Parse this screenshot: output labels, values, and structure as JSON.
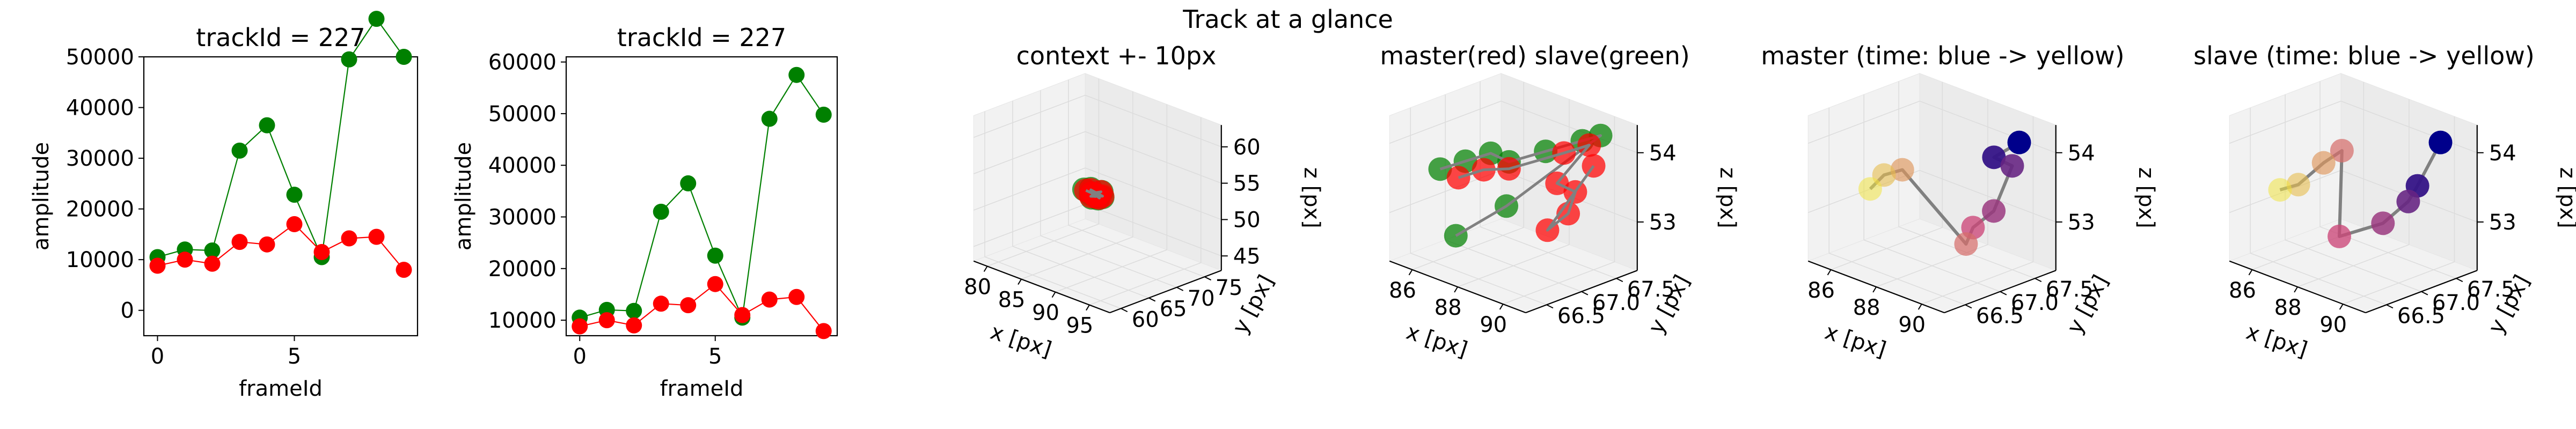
{
  "figure_title": "Track at a glance",
  "colors": {
    "red": "#ff0000",
    "green": "#008000",
    "trajectory": "#808080",
    "time_start": "#00008b",
    "time_mid": "#cc4778",
    "time_end": "#f0e442"
  },
  "chart_data": [
    {
      "type": "line",
      "title": "trackId = 227",
      "xlabel": "frameId",
      "ylabel": "amplitude",
      "x": [
        0,
        1,
        2,
        3,
        4,
        5,
        6,
        7,
        8,
        9
      ],
      "series": [
        {
          "color": "green",
          "values": [
            10500,
            12000,
            11800,
            31500,
            36500,
            22800,
            10500,
            49500,
            57500,
            50000
          ]
        },
        {
          "color": "red",
          "values": [
            8800,
            10000,
            9200,
            13500,
            13000,
            17000,
            11500,
            14200,
            14500,
            8000
          ]
        }
      ],
      "xlim": [
        -0.5,
        9.5
      ],
      "ylim": [
        -5000,
        50000
      ],
      "xticks": [
        "0",
        "5"
      ],
      "yticks": [
        "0",
        "10000",
        "20000",
        "30000",
        "40000",
        "50000"
      ],
      "grid": false
    },
    {
      "type": "line",
      "title": "trackId = 227",
      "xlabel": "frameId",
      "ylabel": "amplitude",
      "x": [
        0,
        1,
        2,
        3,
        4,
        5,
        6,
        7,
        8,
        9
      ],
      "series": [
        {
          "color": "green",
          "values": [
            10500,
            12000,
            11800,
            31000,
            36500,
            22500,
            10500,
            49000,
            57500,
            49800
          ]
        },
        {
          "color": "red",
          "values": [
            8800,
            10000,
            9000,
            13200,
            12900,
            17000,
            11000,
            14000,
            14500,
            7900
          ]
        }
      ],
      "xlim": [
        -0.5,
        9.5
      ],
      "ylim": [
        7000,
        61000
      ],
      "xticks": [
        "0",
        "5"
      ],
      "yticks": [
        "10000",
        "20000",
        "30000",
        "40000",
        "50000",
        "60000"
      ],
      "grid": false
    },
    {
      "type": "scatter",
      "title": "context +- 10px",
      "xlabel": "x [px]",
      "ylabel": "y [px]",
      "zlabel": "z [px]",
      "xticks": [
        "80",
        "85",
        "90",
        "95"
      ],
      "yticks": [
        "60",
        "65",
        "70",
        "75"
      ],
      "zticks": [
        "45",
        "50",
        "55",
        "60"
      ],
      "xlim": [
        78,
        98
      ],
      "ylim": [
        58,
        78
      ],
      "zlim": [
        43,
        63
      ],
      "series": [
        {
          "color": "green",
          "points": [
            [
              87,
              66.8,
              53.5
            ],
            [
              88,
              67.0,
              53.3
            ],
            [
              89,
              66.9,
              52.9
            ],
            [
              88.5,
              67.2,
              53.0
            ],
            [
              87.5,
              67.4,
              53.6
            ],
            [
              89.5,
              67.1,
              53.2
            ],
            [
              88.2,
              66.7,
              52.8
            ],
            [
              89.2,
              67.3,
              53.8
            ],
            [
              87.8,
              67.0,
              53.1
            ]
          ]
        },
        {
          "color": "red",
          "points": [
            [
              87.2,
              66.9,
              53.4
            ],
            [
              88.3,
              67.1,
              53.2
            ],
            [
              89.1,
              67.0,
              53.0
            ],
            [
              88.6,
              67.3,
              53.1
            ],
            [
              87.6,
              67.3,
              53.5
            ],
            [
              89.4,
              67.2,
              53.3
            ],
            [
              88.0,
              66.8,
              52.9
            ],
            [
              89.0,
              67.4,
              53.7
            ],
            [
              87.9,
              67.1,
              53.2
            ],
            [
              88.7,
              66.9,
              53.0
            ]
          ]
        }
      ]
    },
    {
      "type": "scatter",
      "title": "master(red) slave(green)",
      "xlabel": "x [px]",
      "ylabel": "y [px]",
      "zlabel": "z [px]",
      "xticks": [
        "86",
        "88",
        "90"
      ],
      "yticks": [
        "66.5",
        "67.0",
        "67.5"
      ],
      "zticks": [
        "53",
        "54"
      ],
      "xlim": [
        85,
        91
      ],
      "ylim": [
        66.2,
        67.8
      ],
      "zlim": [
        52.3,
        54.4
      ],
      "series": [
        {
          "color": "green",
          "points": [
            [
              86.0,
              66.6,
              53.6
            ],
            [
              86.5,
              66.8,
              53.7
            ],
            [
              87.0,
              67.0,
              53.8
            ],
            [
              87.5,
              67.1,
              53.7
            ],
            [
              88.5,
              67.3,
              53.9
            ],
            [
              89.5,
              67.5,
              54.1
            ],
            [
              90.0,
              67.6,
              54.2
            ],
            [
              88.0,
              66.9,
              53.2
            ],
            [
              87.0,
              66.5,
              52.8
            ]
          ]
        },
        {
          "color": "red",
          "points": [
            [
              86.5,
              66.7,
              53.5
            ],
            [
              87.0,
              66.9,
              53.6
            ],
            [
              87.5,
              67.1,
              53.6
            ],
            [
              89.0,
              67.4,
              53.9
            ],
            [
              89.5,
              67.6,
              54.0
            ],
            [
              89.0,
              67.3,
              53.5
            ],
            [
              89.5,
              67.4,
              53.4
            ],
            [
              89.8,
              67.2,
              53.2
            ],
            [
              89.5,
              67.0,
              53.0
            ],
            [
              90.0,
              67.5,
              53.8
            ]
          ]
        }
      ]
    },
    {
      "type": "scatter",
      "title": "master (time: blue -> yellow)",
      "xlabel": "x [px]",
      "ylabel": "y [px]",
      "zlabel": "z [px]",
      "xticks": [
        "86",
        "88",
        "90"
      ],
      "yticks": [
        "66.5",
        "67.0",
        "67.5"
      ],
      "zticks": [
        "53",
        "54"
      ],
      "xlim": [
        85,
        91
      ],
      "ylim": [
        66.2,
        67.8
      ],
      "zlim": [
        52.3,
        54.4
      ],
      "series": [
        {
          "color": "time",
          "points": [
            [
              90.0,
              67.6,
              54.1
            ],
            [
              89.5,
              67.4,
              53.9
            ],
            [
              90.0,
              67.5,
              53.8
            ],
            [
              89.8,
              67.3,
              53.2
            ],
            [
              89.5,
              67.1,
              53.0
            ],
            [
              89.5,
              67.0,
              52.8
            ],
            [
              87.0,
              66.9,
              53.6
            ],
            [
              86.5,
              66.8,
              53.5
            ],
            [
              86.2,
              66.7,
              53.3
            ]
          ]
        }
      ]
    },
    {
      "type": "scatter",
      "title": "slave (time: blue -> yellow)",
      "xlabel": "x [px]",
      "ylabel": "y [px]",
      "zlabel": "z [px]",
      "xticks": [
        "86",
        "88",
        "90"
      ],
      "yticks": [
        "66.5",
        "67.0",
        "67.5"
      ],
      "zticks": [
        "53",
        "54"
      ],
      "xlim": [
        85,
        91
      ],
      "ylim": [
        66.2,
        67.8
      ],
      "zlim": [
        52.3,
        54.4
      ],
      "series": [
        {
          "color": "time",
          "points": [
            [
              90.0,
              67.6,
              54.1
            ],
            [
              89.6,
              67.4,
              53.5
            ],
            [
              89.5,
              67.3,
              53.3
            ],
            [
              89.0,
              67.1,
              53.0
            ],
            [
              88.0,
              66.8,
              52.8
            ],
            [
              87.5,
              67.0,
              53.9
            ],
            [
              87.0,
              66.9,
              53.7
            ],
            [
              86.5,
              66.7,
              53.4
            ],
            [
              86.0,
              66.6,
              53.3
            ]
          ]
        }
      ]
    }
  ]
}
